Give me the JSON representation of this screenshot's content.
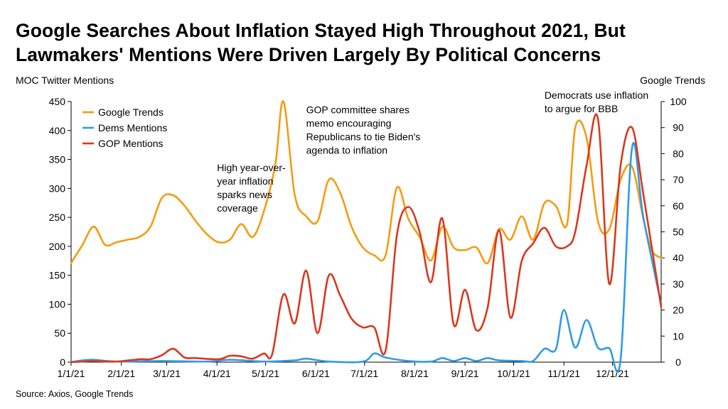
{
  "title_lines": [
    "Google Searches About Inflation Stayed High Throughout 2021, But",
    "Lawmakers' Mentions Were Driven Largely By Political Concerns"
  ],
  "source": "Source: Axios, Google Trends",
  "chart_data": {
    "type": "line",
    "title": "Google Searches About Inflation Stayed High Throughout 2021, But Lawmakers' Mentions Were Driven Largely By Political Concerns",
    "y_left_label": "MOC Twitter Mentions",
    "y_right_label": "Google Trends",
    "y_left_range": [
      0,
      450
    ],
    "y_left_ticks": [
      0,
      50,
      100,
      150,
      200,
      250,
      300,
      350,
      400,
      450
    ],
    "y_right_range": [
      0,
      100
    ],
    "y_right_ticks": [
      0,
      10,
      20,
      30,
      40,
      50,
      60,
      70,
      80,
      90,
      100
    ],
    "x_ticks": [
      "1/1/21",
      "2/1/21",
      "3/1/21",
      "4/1/21",
      "5/1/21",
      "6/1/21",
      "7/1/21",
      "8/1/21",
      "9/1/21",
      "10/1/21",
      "11/1/21",
      "12/1/21"
    ],
    "grid": false,
    "legend_position": "top-left",
    "series": [
      {
        "name": "Google Trends",
        "axis": "right",
        "color": "#F39C12",
        "points": [
          [
            "2021-01-01",
            38
          ],
          [
            "2021-01-08",
            45
          ],
          [
            "2021-01-15",
            52
          ],
          [
            "2021-01-22",
            45
          ],
          [
            "2021-01-29",
            46
          ],
          [
            "2021-02-05",
            47
          ],
          [
            "2021-02-12",
            48
          ],
          [
            "2021-02-19",
            52
          ],
          [
            "2021-02-26",
            63
          ],
          [
            "2021-03-05",
            64
          ],
          [
            "2021-03-12",
            60
          ],
          [
            "2021-03-19",
            54
          ],
          [
            "2021-03-26",
            49
          ],
          [
            "2021-04-02",
            46
          ],
          [
            "2021-04-09",
            47
          ],
          [
            "2021-04-16",
            53
          ],
          [
            "2021-04-23",
            48
          ],
          [
            "2021-04-30",
            58
          ],
          [
            "2021-05-07",
            76
          ],
          [
            "2021-05-12",
            100
          ],
          [
            "2021-05-19",
            64
          ],
          [
            "2021-05-26",
            56
          ],
          [
            "2021-06-02",
            54
          ],
          [
            "2021-06-09",
            70
          ],
          [
            "2021-06-16",
            65
          ],
          [
            "2021-06-23",
            52
          ],
          [
            "2021-06-30",
            44
          ],
          [
            "2021-07-07",
            41
          ],
          [
            "2021-07-14",
            41
          ],
          [
            "2021-07-21",
            67
          ],
          [
            "2021-07-28",
            55
          ],
          [
            "2021-08-04",
            48
          ],
          [
            "2021-08-11",
            39
          ],
          [
            "2021-08-18",
            52
          ],
          [
            "2021-08-25",
            44
          ],
          [
            "2021-09-01",
            43
          ],
          [
            "2021-09-08",
            44
          ],
          [
            "2021-09-15",
            38
          ],
          [
            "2021-09-22",
            51
          ],
          [
            "2021-09-29",
            47
          ],
          [
            "2021-10-06",
            56
          ],
          [
            "2021-10-13",
            47
          ],
          [
            "2021-10-20",
            61
          ],
          [
            "2021-10-27",
            60
          ],
          [
            "2021-11-03",
            53
          ],
          [
            "2021-11-08",
            90
          ],
          [
            "2021-11-15",
            86
          ],
          [
            "2021-11-22",
            54
          ],
          [
            "2021-11-29",
            51
          ],
          [
            "2021-12-06",
            70
          ],
          [
            "2021-12-13",
            75
          ],
          [
            "2021-12-20",
            55
          ],
          [
            "2021-12-25",
            43
          ],
          [
            "2021-12-31",
            40
          ]
        ]
      },
      {
        "name": "Dems Mentions",
        "axis": "left",
        "color": "#2E9BE8",
        "points": [
          [
            "2021-01-01",
            0
          ],
          [
            "2021-01-08",
            3
          ],
          [
            "2021-01-15",
            4
          ],
          [
            "2021-01-29",
            1
          ],
          [
            "2021-02-26",
            2
          ],
          [
            "2021-03-26",
            1
          ],
          [
            "2021-04-09",
            4
          ],
          [
            "2021-04-30",
            1
          ],
          [
            "2021-05-19",
            3
          ],
          [
            "2021-05-26",
            6
          ],
          [
            "2021-06-09",
            1
          ],
          [
            "2021-06-30",
            1
          ],
          [
            "2021-07-07",
            15
          ],
          [
            "2021-07-14",
            8
          ],
          [
            "2021-07-28",
            2
          ],
          [
            "2021-08-11",
            1
          ],
          [
            "2021-08-18",
            7
          ],
          [
            "2021-08-25",
            2
          ],
          [
            "2021-09-01",
            7
          ],
          [
            "2021-09-08",
            2
          ],
          [
            "2021-09-15",
            7
          ],
          [
            "2021-09-22",
            3
          ],
          [
            "2021-10-06",
            2
          ],
          [
            "2021-10-13",
            2
          ],
          [
            "2021-10-20",
            23
          ],
          [
            "2021-10-27",
            22
          ],
          [
            "2021-11-01",
            90
          ],
          [
            "2021-11-08",
            25
          ],
          [
            "2021-11-15",
            73
          ],
          [
            "2021-11-22",
            25
          ],
          [
            "2021-11-29",
            24
          ],
          [
            "2021-12-06",
            5
          ],
          [
            "2021-12-13",
            370
          ],
          [
            "2021-12-20",
            250
          ],
          [
            "2021-12-31",
            100
          ]
        ]
      },
      {
        "name": "GOP Mentions",
        "axis": "left",
        "color": "#D9381E",
        "points": [
          [
            "2021-01-01",
            0
          ],
          [
            "2021-01-08",
            1
          ],
          [
            "2021-01-15",
            2
          ],
          [
            "2021-01-29",
            1
          ],
          [
            "2021-02-12",
            5
          ],
          [
            "2021-02-19",
            5
          ],
          [
            "2021-02-26",
            12
          ],
          [
            "2021-03-05",
            23
          ],
          [
            "2021-03-12",
            8
          ],
          [
            "2021-03-19",
            7
          ],
          [
            "2021-04-02",
            5
          ],
          [
            "2021-04-09",
            11
          ],
          [
            "2021-04-16",
            10
          ],
          [
            "2021-04-23",
            6
          ],
          [
            "2021-04-30",
            15
          ],
          [
            "2021-05-05",
            13
          ],
          [
            "2021-05-12",
            117
          ],
          [
            "2021-05-19",
            67
          ],
          [
            "2021-05-26",
            158
          ],
          [
            "2021-06-02",
            50
          ],
          [
            "2021-06-09",
            150
          ],
          [
            "2021-06-16",
            115
          ],
          [
            "2021-06-23",
            75
          ],
          [
            "2021-06-30",
            60
          ],
          [
            "2021-07-07",
            60
          ],
          [
            "2021-07-14",
            20
          ],
          [
            "2021-07-21",
            220
          ],
          [
            "2021-07-28",
            268
          ],
          [
            "2021-08-04",
            225
          ],
          [
            "2021-08-11",
            138
          ],
          [
            "2021-08-18",
            248
          ],
          [
            "2021-08-25",
            65
          ],
          [
            "2021-09-01",
            125
          ],
          [
            "2021-09-08",
            55
          ],
          [
            "2021-09-15",
            95
          ],
          [
            "2021-09-22",
            228
          ],
          [
            "2021-09-29",
            77
          ],
          [
            "2021-10-06",
            175
          ],
          [
            "2021-10-13",
            205
          ],
          [
            "2021-10-20",
            232
          ],
          [
            "2021-10-27",
            200
          ],
          [
            "2021-11-03",
            200
          ],
          [
            "2021-11-08",
            225
          ],
          [
            "2021-11-15",
            340
          ],
          [
            "2021-11-22",
            420
          ],
          [
            "2021-11-29",
            135
          ],
          [
            "2021-12-06",
            340
          ],
          [
            "2021-12-13",
            405
          ],
          [
            "2021-12-20",
            290
          ],
          [
            "2021-12-31",
            95
          ]
        ]
      }
    ],
    "annotations": [
      {
        "lines": [
          "High year-over-",
          "year inflation",
          "sparks news",
          "coverage"
        ],
        "at_date": "2021-04-01",
        "at_value": 330
      },
      {
        "lines": [
          "GOP committee shares",
          "memo encouraging",
          "Republicans to tie Biden's",
          "agenda to inflation"
        ],
        "at_date": "2021-05-26",
        "at_value": 430
      },
      {
        "lines": [
          "Democrats use inflation",
          "to argue for BBB"
        ],
        "at_date": "2021-10-20",
        "at_value": 455
      }
    ]
  }
}
